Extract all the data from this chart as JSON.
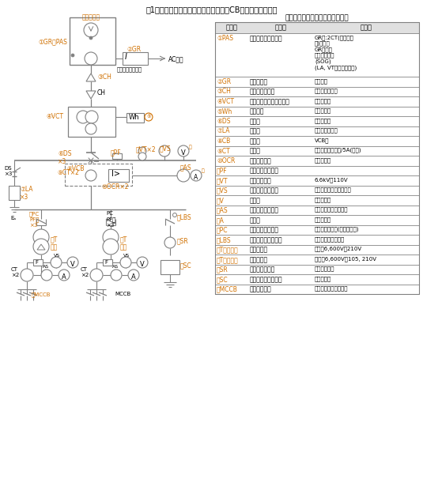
{
  "title": "第1図　キュービクル式高圧受電設備（CB形）の単線結線図",
  "table_title": "高圧受電設備の構成機器名称一覧",
  "bg_color": "#ffffff",
  "line_color": "#808080",
  "orange_color": "#d07000",
  "table_rows": [
    [
      "①PAS",
      "高圧交流負荷開閉器",
      "GR付:2CT(零相変流\n器)内蔵・\nGR付属・\n過電流ロック\n(SOG)\n(LA, VT内蔵形もある)"
    ],
    [
      "②GR",
      "地絡継電器",
      "地絡保護"
    ],
    [
      "③CH",
      "ケーブルヘッド",
      "ケーブル端末部"
    ],
    [
      "④VCT",
      "電力需給用計器用変成器",
      "電力量計用"
    ],
    [
      "⑤Wh",
      "電力量計",
      "電力の積算"
    ],
    [
      "⑥DS",
      "断路器",
      "電路の開閉"
    ],
    [
      "⑦LA",
      "避雷器",
      "雷サージの保護"
    ],
    [
      "⑧CB",
      "遮断器",
      "VCB等"
    ],
    [
      "⑨CT",
      "変流器",
      "高圧固定格電流値/5A(二次)"
    ],
    [
      "⑩OCR",
      "過電流継電器",
      "過電流保護"
    ],
    [
      "⑪PF",
      "高圧限流ヒューズ",
      ""
    ],
    [
      "⑫VT",
      "計器用変圧器",
      "6.6kV／110V"
    ],
    [
      "⑬VS",
      "電圧計切換開閉器",
      "各相間の電圧計測の切換"
    ],
    [
      "⑭V",
      "電圧計",
      "電圧の表示"
    ],
    [
      "⑮AS",
      "電流計切換開閉器",
      "各相の電流計測の切換"
    ],
    [
      "⑯A",
      "電流計",
      "電流の表示"
    ],
    [
      "⑰PC",
      "高圧カットアウト",
      "高圧回路の開閉(ヒューズ付)"
    ],
    [
      "⑱LBS",
      "高圧交流負荷開閉器",
      "高圧限流ヒューズ付"
    ],
    [
      "⑲T（三相）",
      "三相変圧器",
      "動力用6,600V／210V"
    ],
    [
      "⑳T（単相）",
      "単相変圧器",
      "電灯用6,600V／105, 210V"
    ],
    [
      "㉑SR",
      "直列リアクトル",
      "高調波対策用"
    ],
    [
      "㉒SC",
      "高圧進相コンデンサ",
      "力率改善用"
    ],
    [
      "㉓MCCB",
      "配線用遮断器",
      "低圧回路の過電流保護"
    ]
  ],
  "col_headers": [
    "記　号",
    "名　称",
    "備　考"
  ]
}
